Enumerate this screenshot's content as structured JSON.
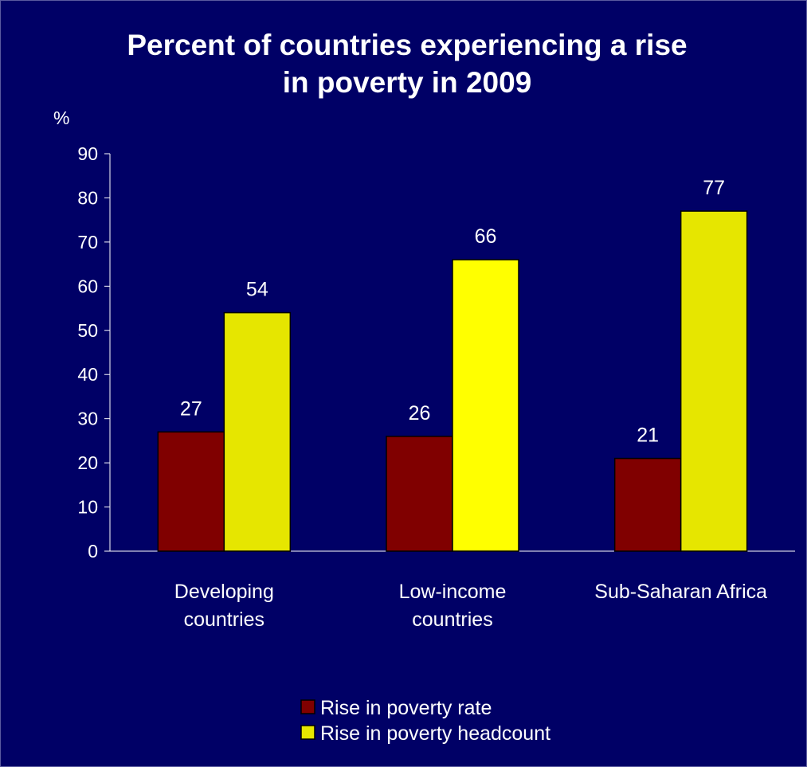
{
  "colors": {
    "background": "#000066",
    "series_rate": "#800000",
    "series_headcount": "#E6E600",
    "headcount_alt_fill": "#FFFF00",
    "text": "#FFFFFF"
  },
  "chart_data": {
    "type": "bar",
    "title": "Percent of countries experiencing a rise in poverty in 2009",
    "ylabel": "%",
    "xlabel": "",
    "ylim": [
      0,
      90
    ],
    "yticks": [
      0,
      10,
      20,
      30,
      40,
      50,
      60,
      70,
      80,
      90
    ],
    "categories": [
      [
        "Developing",
        "countries"
      ],
      [
        "Low-income",
        "countries"
      ],
      [
        "Sub-Saharan Africa"
      ]
    ],
    "series": [
      {
        "name": "Rise in poverty rate",
        "values": [
          27,
          26,
          21
        ]
      },
      {
        "name": "Rise in poverty headcount",
        "values": [
          54,
          66,
          77
        ]
      }
    ],
    "data_labels": true,
    "grid": false,
    "legend": "bottom-center"
  }
}
